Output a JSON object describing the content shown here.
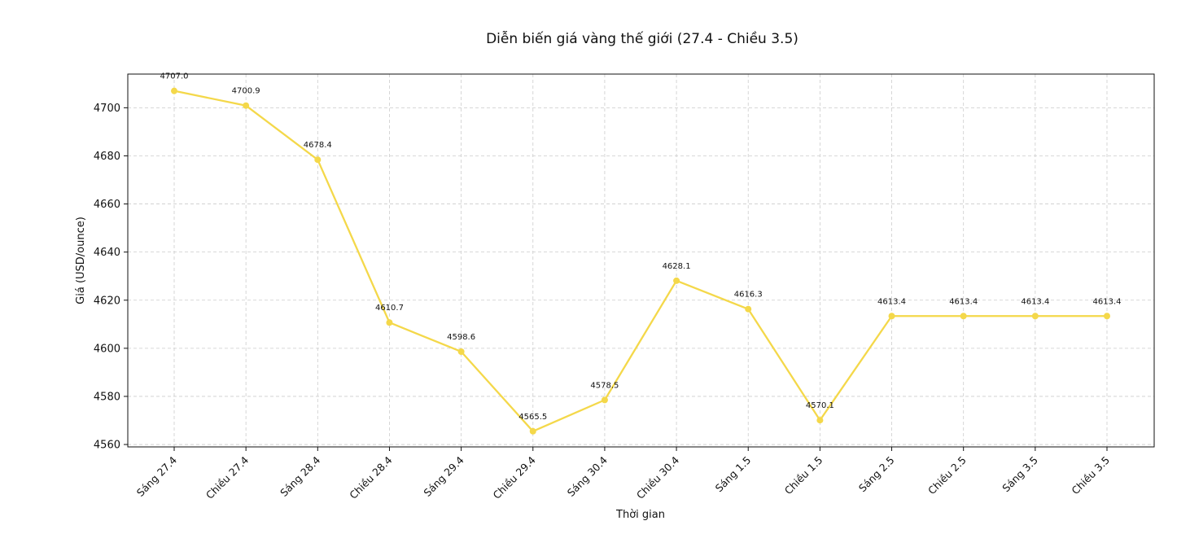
{
  "chart_data": {
    "type": "line",
    "title": "Diễn biến giá vàng thế giới (27.4 - Chiều 3.5)",
    "xlabel": "Thời gian",
    "ylabel": "Giá (USD/ounce)",
    "ylim": [
      4559,
      4714
    ],
    "yticks": [
      4560,
      4580,
      4600,
      4620,
      4640,
      4660,
      4680,
      4700
    ],
    "grid": true,
    "categories": [
      "Sáng 27.4",
      "Chiều 27.4",
      "Sáng 28.4",
      "Chiều 28.4",
      "Sáng 29.4",
      "Chiều 29.4",
      "Sáng 30.4",
      "Chiều 30.4",
      "Sáng 1.5",
      "Chiều 1.5",
      "Sáng 2.5",
      "Chiều 2.5",
      "Sáng 3.5",
      "Chiều 3.5"
    ],
    "series": [
      {
        "values": [
          4707.0,
          4700.9,
          4678.4,
          4610.7,
          4598.6,
          4565.5,
          4578.5,
          4628.1,
          4616.3,
          4570.1,
          4613.4,
          4613.4,
          4613.4,
          4613.4
        ],
        "data_labels": [
          "4707.0",
          "4700.9",
          "4678.4",
          "4610.7",
          "4598.6",
          "4565.5",
          "4578.5",
          "4628.1",
          "4616.3",
          "4570.1",
          "4613.4",
          "4613.4",
          "4613.4",
          "4613.4"
        ],
        "color": "#f4d84a"
      }
    ]
  }
}
